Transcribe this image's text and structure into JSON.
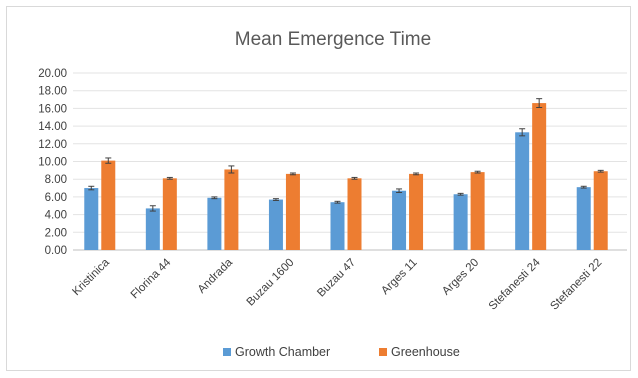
{
  "chart_data": {
    "type": "bar",
    "title": "Mean Emergence Time",
    "xlabel": "",
    "ylabel": "",
    "ylim": [
      0,
      20
    ],
    "yticks": [
      "0.00",
      "2.00",
      "4.00",
      "6.00",
      "8.00",
      "10.00",
      "12.00",
      "14.00",
      "16.00",
      "18.00",
      "20.00"
    ],
    "grid": true,
    "legend_position": "bottom",
    "categories": [
      "Kristinica",
      "Florina 44",
      "Andrada",
      "Buzau 1600",
      "Buzau 47",
      "Arges 11",
      "Arges 20",
      "Stefanesti 24",
      "Stefanesti 22"
    ],
    "series": [
      {
        "name": "Growth Chamber",
        "color": "#5b9bd5",
        "values": [
          7.0,
          4.7,
          5.9,
          5.7,
          5.4,
          6.7,
          6.3,
          13.3,
          7.1
        ],
        "errors": [
          0.2,
          0.3,
          0.1,
          0.1,
          0.1,
          0.2,
          0.1,
          0.4,
          0.1
        ]
      },
      {
        "name": "Greenhouse",
        "color": "#ed7d31",
        "values": [
          10.1,
          8.1,
          9.1,
          8.6,
          8.1,
          8.6,
          8.8,
          16.6,
          8.9
        ],
        "errors": [
          0.3,
          0.1,
          0.4,
          0.1,
          0.1,
          0.1,
          0.1,
          0.5,
          0.1
        ]
      }
    ]
  }
}
